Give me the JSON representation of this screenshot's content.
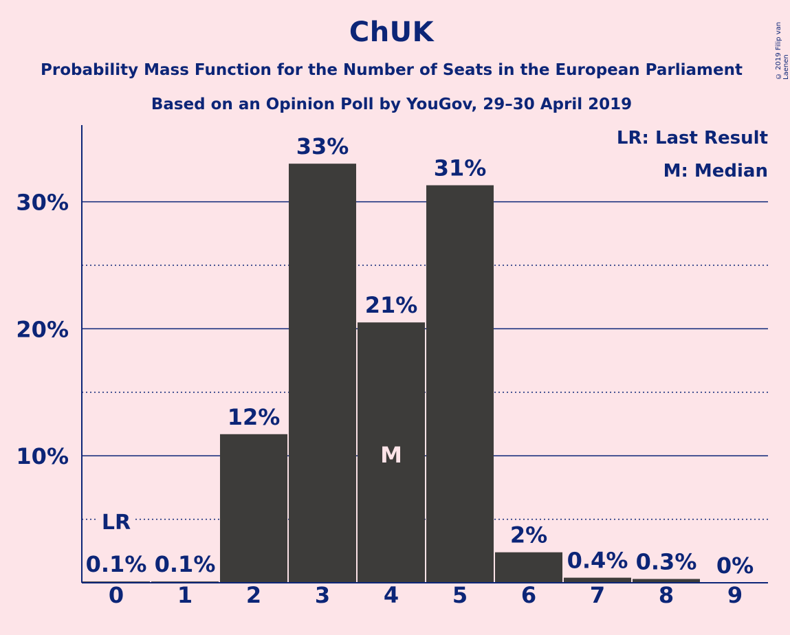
{
  "title": "ChUK",
  "subtitle_line1": "Probability Mass Function for the Number of Seats in the European Parliament",
  "subtitle_line2": "Based on an Opinion Poll by YouGov, 29–30 April 2019",
  "copyright": "© 2019 Filip van Laenen",
  "legend": {
    "last_result": "LR: Last Result",
    "median": "M: Median"
  },
  "colors": {
    "background": "#fde4e8",
    "text": "#0c2577",
    "bar": "#3d3c3a",
    "median_marker": "#fde4e8"
  },
  "chart_data": {
    "type": "bar",
    "categories": [
      "0",
      "1",
      "2",
      "3",
      "4",
      "5",
      "6",
      "7",
      "8",
      "9"
    ],
    "values": [
      0.1,
      0.1,
      11.7,
      33.0,
      20.5,
      31.3,
      2.4,
      0.4,
      0.3,
      0.0
    ],
    "data_labels": [
      "0.1%",
      "0.1%",
      "12%",
      "33%",
      "21%",
      "31%",
      "2%",
      "0.4%",
      "0.3%",
      "0%"
    ],
    "y_ticks": [
      10,
      20,
      30
    ],
    "y_tick_labels": [
      "10%",
      "20%",
      "30%"
    ],
    "minor_gridlines": [
      5,
      15,
      25
    ],
    "ylim": [
      0,
      36
    ],
    "last_result": {
      "category": "0",
      "label": "LR"
    },
    "median": {
      "category": "4",
      "label": "M"
    },
    "grid": true,
    "legend_position": "top-right"
  }
}
